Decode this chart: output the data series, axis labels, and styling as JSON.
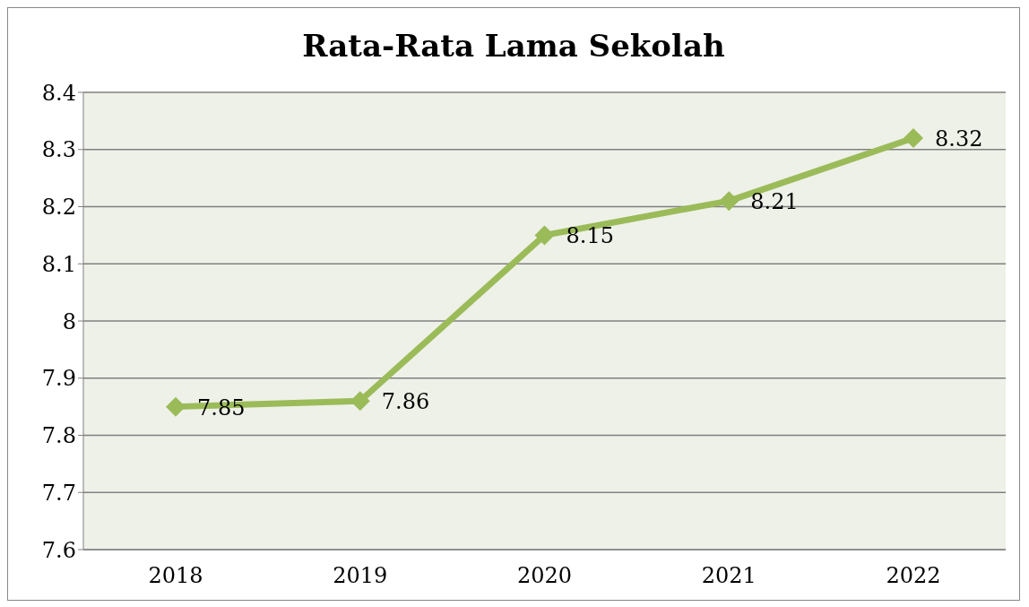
{
  "chart_data": {
    "type": "line",
    "title": "Rata-Rata Lama Sekolah",
    "categories": [
      "2018",
      "2019",
      "2020",
      "2021",
      "2022"
    ],
    "values": [
      7.85,
      7.86,
      8.15,
      8.21,
      8.32
    ],
    "color": "#9bbb59",
    "ylim": [
      7.6,
      8.4
    ],
    "yticks": [
      7.6,
      7.7,
      7.8,
      7.9,
      8,
      8.1,
      8.2,
      8.3,
      8.4
    ],
    "grid": "y",
    "marker": "diamond",
    "data_labels": true
  }
}
